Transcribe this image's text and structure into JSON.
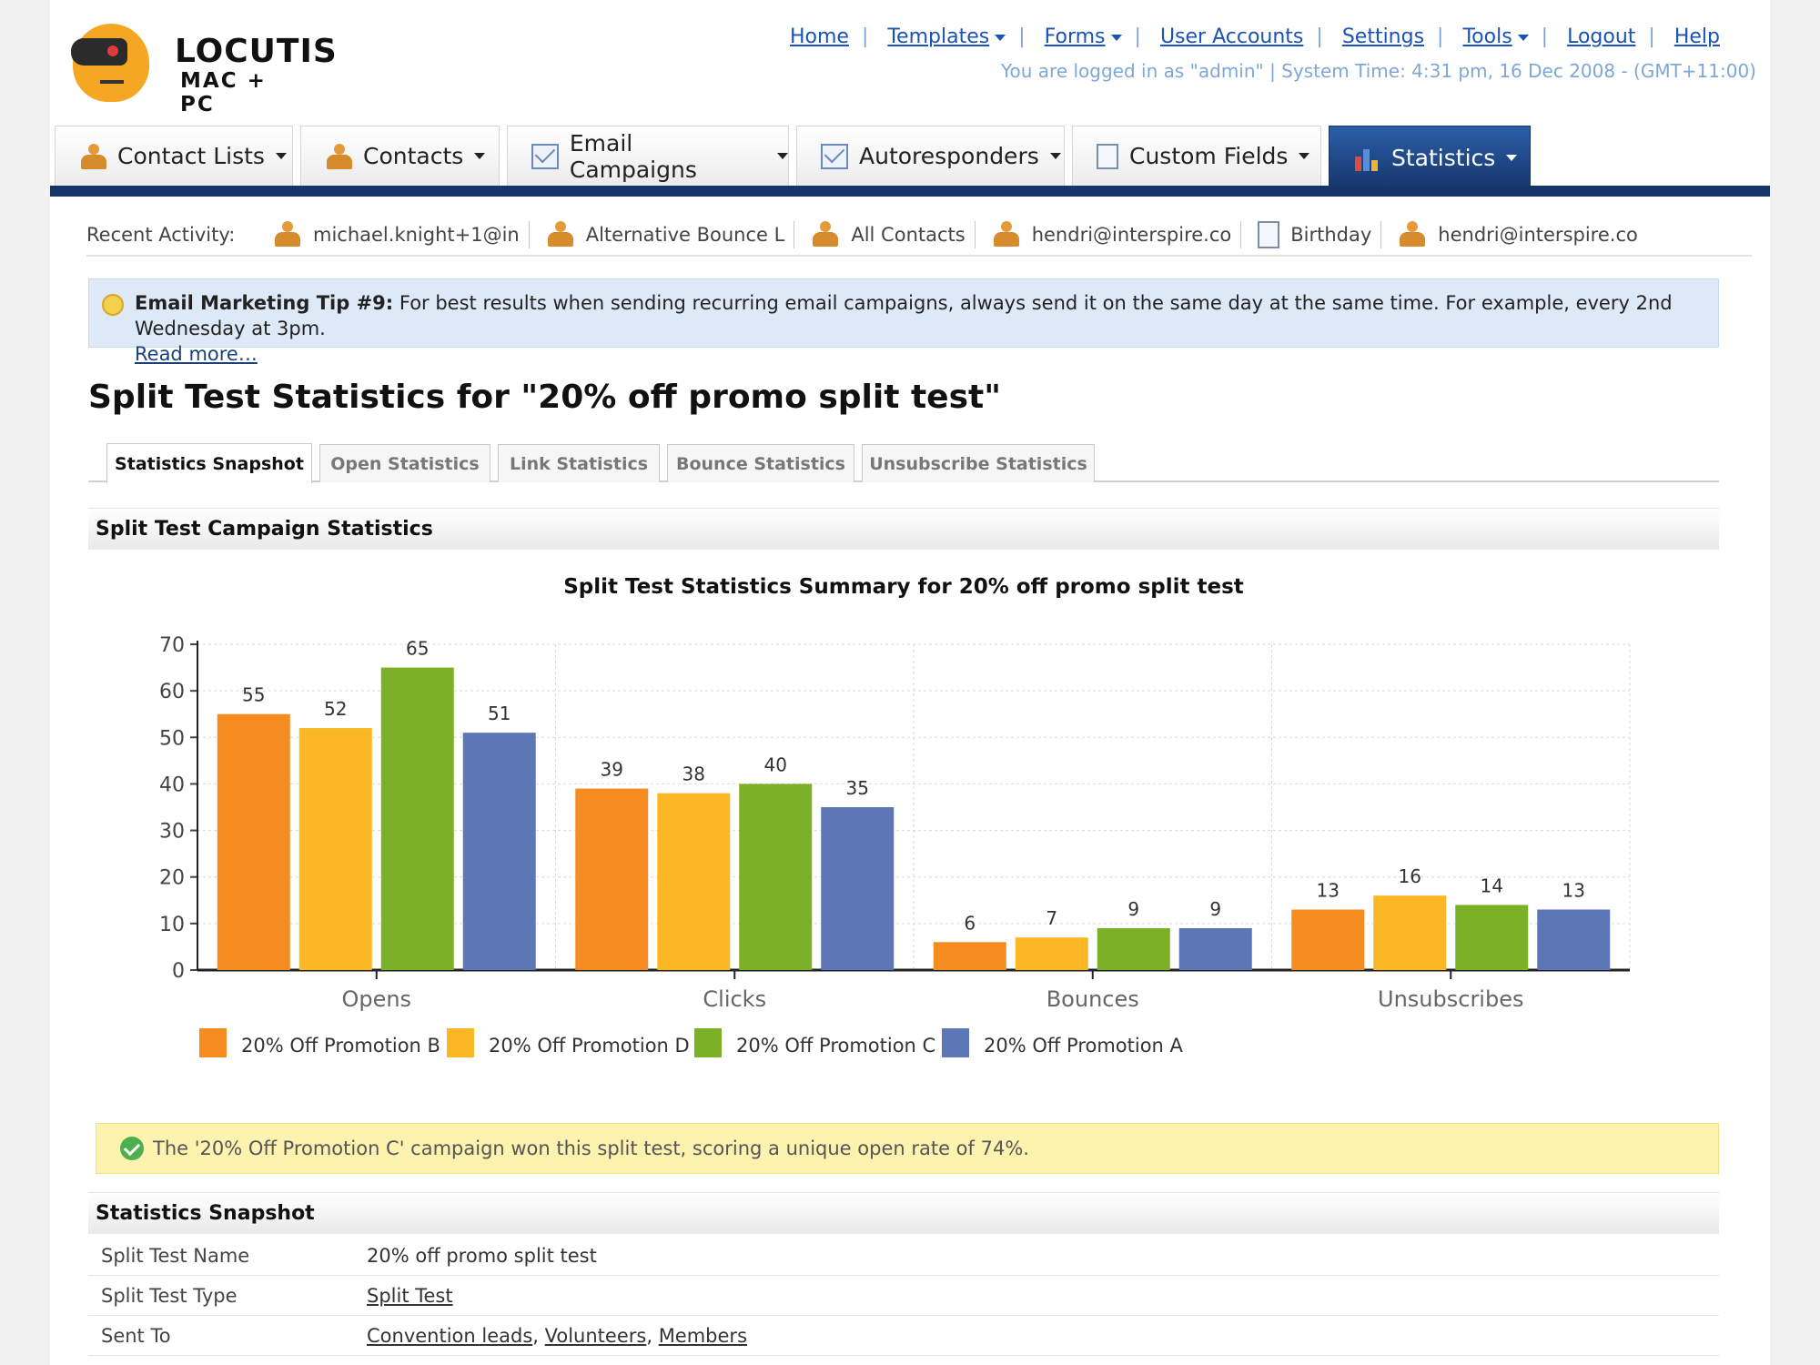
{
  "logo": {
    "brand": "LOCUTIS",
    "tagline": "MAC + PC"
  },
  "topnav": {
    "items": [
      {
        "label": "Home",
        "dropdown": false
      },
      {
        "label": "Templates",
        "dropdown": true
      },
      {
        "label": "Forms",
        "dropdown": true
      },
      {
        "label": "User Accounts",
        "dropdown": false
      },
      {
        "label": "Settings",
        "dropdown": false
      },
      {
        "label": "Tools",
        "dropdown": true
      },
      {
        "label": "Logout",
        "dropdown": false
      },
      {
        "label": "Help",
        "dropdown": false
      }
    ],
    "login_info": "You are logged in as \"admin\" | System Time: 4:31 pm, 16 Dec 2008 - (GMT+11:00)"
  },
  "maintabs": [
    {
      "label": "Contact Lists",
      "icon": "contact-list-icon"
    },
    {
      "label": "Contacts",
      "icon": "contacts-icon"
    },
    {
      "label": "Email Campaigns",
      "icon": "email-icon"
    },
    {
      "label": "Autoresponders",
      "icon": "autoresponder-icon"
    },
    {
      "label": "Custom Fields",
      "icon": "custom-fields-icon"
    },
    {
      "label": "Statistics",
      "icon": "statistics-icon",
      "active": true
    }
  ],
  "recent": {
    "label": "Recent Activity:",
    "items": [
      {
        "text": "michael.knight+1@in",
        "icon": "person-icon"
      },
      {
        "text": "Alternative Bounce L",
        "icon": "contact-list-icon"
      },
      {
        "text": "All Contacts",
        "icon": "contact-list-icon"
      },
      {
        "text": "hendri@interspire.co",
        "icon": "person-icon"
      },
      {
        "text": "Birthday",
        "icon": "document-icon"
      },
      {
        "text": "hendri@interspire.co",
        "icon": "person-icon"
      }
    ]
  },
  "tip": {
    "title": "Email Marketing Tip #9:",
    "text": " For best results when sending recurring email campaigns, always send it on the same day at the same time. For example, every 2nd Wednesday at 3pm.",
    "link": "Read more…"
  },
  "heading": "Split Test Statistics for \"20% off promo split test\"",
  "subtabs": [
    {
      "label": "Statistics Snapshot",
      "active": true
    },
    {
      "label": "Open Statistics"
    },
    {
      "label": "Link Statistics"
    },
    {
      "label": "Bounce Statistics"
    },
    {
      "label": "Unsubscribe Statistics"
    }
  ],
  "section1": "Split Test Campaign Statistics",
  "chart_data": {
    "type": "bar",
    "title": "Split Test Statistics Summary for 20% off promo split test",
    "categories": [
      "Opens",
      "Clicks",
      "Bounces",
      "Unsubscribes"
    ],
    "series": [
      {
        "name": "20% Off Promotion B",
        "color": "#f68b1f",
        "values": [
          55,
          39,
          6,
          13
        ]
      },
      {
        "name": "20% Off Promotion D",
        "color": "#fbb724",
        "values": [
          52,
          38,
          7,
          16
        ]
      },
      {
        "name": "20% Off Promotion C",
        "color": "#7cb026",
        "values": [
          65,
          40,
          9,
          14
        ]
      },
      {
        "name": "20% Off Promotion A",
        "color": "#5d76b6",
        "values": [
          51,
          35,
          9,
          13
        ]
      }
    ],
    "ylim": [
      0,
      70
    ],
    "yticks": [
      "0",
      "10",
      "20",
      "30",
      "40",
      "50",
      "60",
      "70"
    ],
    "grid": true,
    "legend": "bottom-left"
  },
  "success": "The '20% Off Promotion C' campaign won this split test, scoring a unique open rate of 74%.",
  "section2": "Statistics Snapshot",
  "snapshot": {
    "name_label": "Split Test Name",
    "name_value": "20% off promo split test",
    "type_label": "Split Test Type",
    "type_value": "Split Test",
    "sent_label": "Sent To",
    "sent_values": [
      "Convention leads",
      "Volunteers",
      "Members"
    ],
    "sent_sep": ", "
  }
}
